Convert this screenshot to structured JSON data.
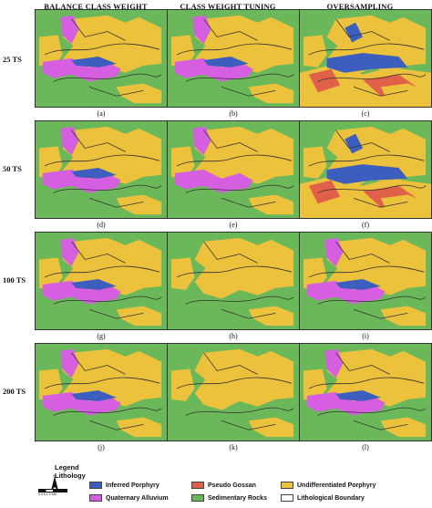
{
  "columns": [
    "BALANCE CLASS WEIGHT",
    "CLASS WEIGHT TUNING",
    "OVERSAMPLING"
  ],
  "rows": [
    "25 TS",
    "50 TS",
    "100 TS",
    "200 TS"
  ],
  "captions": [
    "(a)",
    "(b)",
    "(c)",
    "(d)",
    "(e)",
    "(f)",
    "(g)",
    "(h)",
    "(i)",
    "(j)",
    "(k)",
    "(l)"
  ],
  "legend": {
    "title1": "Legend",
    "title2": "Lithology",
    "items": [
      {
        "label": "Inferred Porphyry",
        "color": "#3c5fbf"
      },
      {
        "label": "Pseudo Gossan",
        "color": "#e0604a"
      },
      {
        "label": "Undifferentiated Porphyry",
        "color": "#ecc13c"
      },
      {
        "label": "Quaternary Alluvium",
        "color": "#d65ee0"
      },
      {
        "label": "Sedimentary Rocks",
        "color": "#6bb85a"
      },
      {
        "label": "Lithological Boundary",
        "color": "#ffffff"
      }
    ]
  },
  "scale_label": "0  0.5  1       2 KM",
  "north_label": "N",
  "colors": {
    "green": "#6bb85a",
    "yellow": "#ecc13c",
    "magenta": "#d65ee0",
    "blue": "#3c5fbf",
    "red": "#e0604a"
  }
}
